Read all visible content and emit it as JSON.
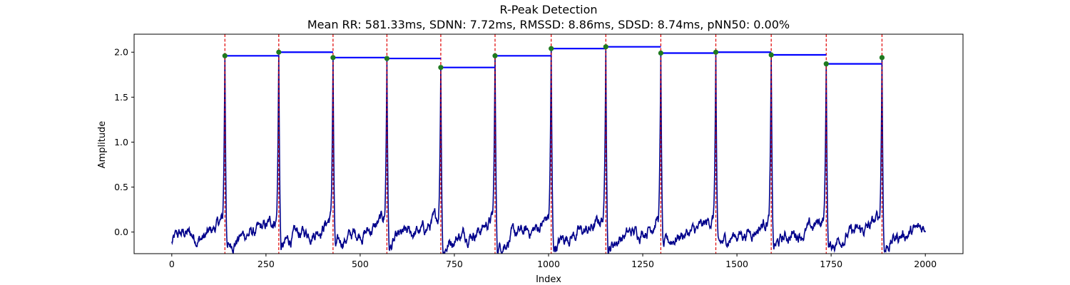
{
  "chart_data": {
    "type": "line",
    "title": "R-Peak Detection",
    "subtitle": "Mean RR: 581.33ms, SDNN: 7.72ms, RMSSD: 8.86ms, SDSD: 8.74ms, pNN50: 0.00%",
    "xlabel": "Index",
    "ylabel": "Amplitude",
    "xlim": [
      -100,
      2100
    ],
    "ylim": [
      -0.24,
      2.2
    ],
    "x_ticks": [
      0,
      250,
      500,
      750,
      1000,
      1250,
      1500,
      1750,
      2000
    ],
    "y_ticks": [
      0.0,
      0.5,
      1.0,
      1.5,
      2.0
    ],
    "x_tick_labels": [
      "0",
      "250",
      "500",
      "750",
      "1000",
      "1250",
      "1500",
      "1750",
      "2000"
    ],
    "y_tick_labels": [
      "0.0",
      "0.5",
      "1.0",
      "1.5",
      "2.0"
    ],
    "grid": false,
    "legend": "none",
    "signal": {
      "color": "#00008b",
      "x_range": [
        0,
        2000
      ],
      "baseline_range": [
        -0.3,
        0.3
      ],
      "peak_width_samples": 6
    },
    "peaks": [
      {
        "x": 141,
        "y": 1.96
      },
      {
        "x": 284,
        "y": 2.0
      },
      {
        "x": 428,
        "y": 1.94
      },
      {
        "x": 571,
        "y": 1.93
      },
      {
        "x": 714,
        "y": 1.83
      },
      {
        "x": 858,
        "y": 1.96
      },
      {
        "x": 1007,
        "y": 2.04
      },
      {
        "x": 1152,
        "y": 2.06
      },
      {
        "x": 1298,
        "y": 1.99
      },
      {
        "x": 1444,
        "y": 2.0
      },
      {
        "x": 1591,
        "y": 1.97
      },
      {
        "x": 1737,
        "y": 1.87
      },
      {
        "x": 1885,
        "y": 1.94
      }
    ],
    "colors": {
      "signal": "#00008b",
      "peak_marker": "#1f7a1f",
      "peak_line": "#e00000",
      "rr_segment": "#0000ff",
      "axes": "#000000"
    }
  }
}
